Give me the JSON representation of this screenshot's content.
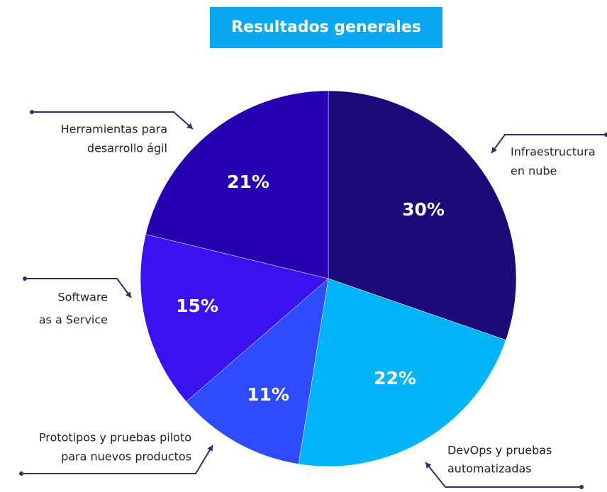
{
  "chart_data": {
    "type": "pie",
    "title": "Resultados generales",
    "categories": [
      [
        "Infraestructura",
        "en nube"
      ],
      [
        "DevOps y pruebas",
        "automatizadas"
      ],
      [
        "Prototipos y pruebas piloto",
        "para nuevos productos"
      ],
      [
        "Software",
        "as a Service"
      ],
      [
        "Herramientas para",
        "desarrollo ágil"
      ]
    ],
    "values": [
      30,
      22,
      11,
      15,
      21
    ],
    "value_labels": [
      "30%",
      "22%",
      "11%",
      "15%",
      "21%"
    ],
    "colors": [
      "#1b0a78",
      "#00b4f7",
      "#2d4cff",
      "#3a12ef",
      "#2400b2"
    ]
  }
}
